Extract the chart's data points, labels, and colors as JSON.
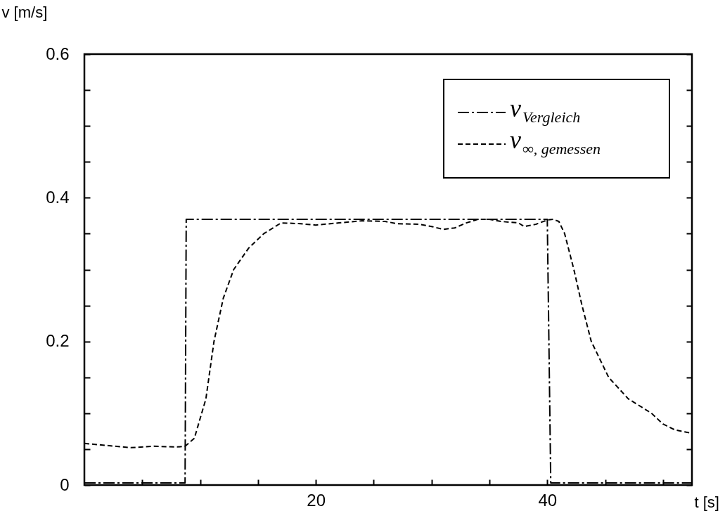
{
  "chart_data": {
    "type": "line",
    "xlabel": "t [s]",
    "ylabel": "v [m/s]",
    "xlim": [
      0,
      52.5
    ],
    "xticks": [
      {
        "value": 5,
        "label": null
      },
      {
        "value": 10,
        "label": null
      },
      {
        "value": 15,
        "label": null
      },
      20,
      {
        "value": 25,
        "label": null
      },
      {
        "value": 30,
        "label": null
      },
      {
        "value": 35,
        "label": null
      },
      40,
      {
        "value": 45,
        "label": null
      },
      {
        "value": 50,
        "label": null
      }
    ],
    "ylim": [
      0,
      0.6
    ],
    "yticks": [
      0,
      {
        "value": 0.05,
        "label": null
      },
      {
        "value": 0.1,
        "label": null
      },
      {
        "value": 0.15,
        "label": null
      },
      0.2,
      {
        "value": 0.25,
        "label": null
      },
      {
        "value": 0.3,
        "label": null
      },
      {
        "value": 0.35,
        "label": null
      },
      0.4,
      {
        "value": 0.45,
        "label": null
      },
      {
        "value": 0.5,
        "label": null
      },
      {
        "value": 0.55,
        "label": null
      },
      0.6
    ],
    "legend": "top right",
    "grid": false,
    "marker": "none",
    "series": [
      {
        "name": "v$_{Vergleich}$",
        "color": "#000000",
        "line_style": "dashdot",
        "x": [
          0,
          8.7,
          8.8,
          40,
          40.3,
          52.5
        ],
        "values": [
          0.003,
          0.003,
          0.37,
          0.37,
          0.003,
          0.003
        ]
      },
      {
        "name": "v$_{∞, gemessen}$",
        "color": "#000000",
        "line_style": "dashed",
        "x": [
          0,
          2,
          4,
          6,
          8,
          8.7,
          9.5,
          10.5,
          11.2,
          12,
          12.9,
          14.2,
          15.5,
          17,
          18.5,
          20,
          22,
          24,
          26,
          27,
          29,
          30,
          31,
          32,
          33,
          34,
          35,
          36,
          37.5,
          38,
          39,
          40,
          40.5,
          41,
          41.5,
          42.3,
          43,
          43.8,
          45.3,
          47,
          49,
          50,
          51,
          52.5
        ],
        "values": [
          0.058,
          0.055,
          0.052,
          0.054,
          0.053,
          0.054,
          0.065,
          0.12,
          0.2,
          0.26,
          0.3,
          0.33,
          0.35,
          0.365,
          0.364,
          0.362,
          0.365,
          0.368,
          0.367,
          0.364,
          0.363,
          0.36,
          0.356,
          0.358,
          0.365,
          0.37,
          0.37,
          0.367,
          0.365,
          0.36,
          0.363,
          0.369,
          0.37,
          0.367,
          0.35,
          0.3,
          0.25,
          0.2,
          0.15,
          0.12,
          0.1,
          0.085,
          0.077,
          0.072
        ]
      }
    ]
  }
}
